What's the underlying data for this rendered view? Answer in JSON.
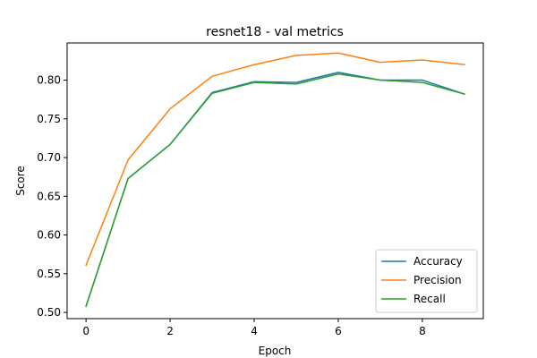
{
  "chart_data": {
    "type": "line",
    "title": "resnet18 - val metrics",
    "xlabel": "Epoch",
    "ylabel": "Score",
    "x": [
      0,
      1,
      2,
      3,
      4,
      5,
      6,
      7,
      8,
      9
    ],
    "xlim": [
      -0.45,
      9.45
    ],
    "ylim": [
      0.492,
      0.848
    ],
    "xticks": [
      0,
      2,
      4,
      6,
      8
    ],
    "xtick_labels": [
      "0",
      "2",
      "4",
      "6",
      "8"
    ],
    "yticks": [
      0.5,
      0.55,
      0.6,
      0.65,
      0.7,
      0.75,
      0.8
    ],
    "ytick_labels": [
      "0.50",
      "0.55",
      "0.60",
      "0.65",
      "0.70",
      "0.75",
      "0.80"
    ],
    "grid": false,
    "legend_position": "bottom-right",
    "series": [
      {
        "name": "Accuracy",
        "color": "#1f77b4",
        "values": [
          0.508,
          0.673,
          0.717,
          0.784,
          0.798,
          0.797,
          0.81,
          0.8,
          0.8,
          0.782
        ]
      },
      {
        "name": "Precision",
        "color": "#ff7f0e",
        "values": [
          0.561,
          0.697,
          0.763,
          0.805,
          0.82,
          0.832,
          0.835,
          0.823,
          0.826,
          0.82
        ]
      },
      {
        "name": "Recall",
        "color": "#2ca02c",
        "values": [
          0.508,
          0.673,
          0.717,
          0.783,
          0.797,
          0.795,
          0.808,
          0.8,
          0.797,
          0.782
        ]
      }
    ]
  }
}
